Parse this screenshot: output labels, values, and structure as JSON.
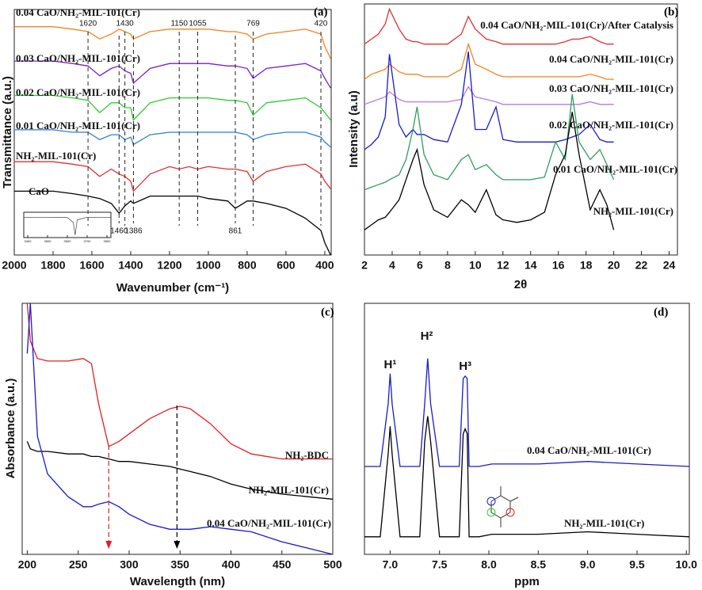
{
  "chart_data": [
    {
      "type": "line",
      "panel_label": "(a)",
      "xlabel": "Wavenumber (cm⁻¹)",
      "ylabel": "Transmittance (a.u.)",
      "xlim": [
        2000,
        367
      ],
      "ylim": [
        0,
        100
      ],
      "xticks": [
        2000,
        1800,
        1600,
        1400,
        1200,
        1000,
        800,
        600,
        400
      ],
      "x": [
        2000,
        1900,
        1800,
        1700,
        1620,
        1560,
        1500,
        1460,
        1430,
        1400,
        1386,
        1300,
        1200,
        1150,
        1100,
        1055,
        1000,
        900,
        861,
        800,
        769,
        700,
        600,
        500,
        420,
        400,
        370
      ],
      "series": [
        {
          "name": "0.04 CaO/NH₂-MIL-101(Cr)",
          "color": "#f5821f",
          "values": [
            93,
            93,
            93,
            92,
            91,
            88,
            90,
            92,
            91,
            90,
            88,
            91,
            92,
            92,
            92,
            92,
            92,
            91,
            91,
            90,
            88,
            90,
            91,
            92,
            90,
            85,
            80
          ]
        },
        {
          "name": "0.03 CaO/NH₂-MIL-101(Cr)",
          "color": "#7b1fc8",
          "values": [
            79,
            79,
            79,
            78,
            77,
            73,
            76,
            77,
            75,
            74,
            70,
            76,
            78,
            78,
            78,
            78,
            78,
            77,
            77,
            76,
            72,
            76,
            77,
            78,
            75,
            72,
            68
          ]
        },
        {
          "name": "0.02 CaO/NH₂-MIL-101(Cr)",
          "color": "#2ecc2e",
          "values": [
            65,
            65,
            65,
            64,
            63,
            58,
            62,
            62,
            60,
            60,
            55,
            62,
            64,
            64,
            64,
            64,
            64,
            63,
            63,
            62,
            57,
            62,
            63,
            64,
            60,
            58,
            55
          ]
        },
        {
          "name": "0.01 CaO/NH₂-MIL-101(Cr)",
          "color": "#2a7fd4",
          "values": [
            51,
            51,
            51,
            50,
            50,
            47,
            49,
            49,
            47,
            48,
            45,
            49,
            50,
            50,
            50,
            50,
            50,
            50,
            50,
            49,
            47,
            49,
            50,
            50,
            48,
            46,
            44
          ]
        },
        {
          "name": "NH₂-MIL-101(Cr)",
          "color": "#e03030",
          "values": [
            38,
            38,
            38,
            37,
            36,
            32,
            35,
            33,
            32,
            30,
            26,
            33,
            36,
            35,
            36,
            35,
            36,
            35,
            35,
            34,
            30,
            34,
            36,
            37,
            33,
            30,
            27
          ]
        },
        {
          "name": "CaO",
          "color": "#000000",
          "values": [
            26,
            26,
            26,
            25,
            24,
            23,
            21,
            17,
            20,
            22,
            21,
            24,
            24,
            24,
            24,
            24,
            23,
            22,
            19,
            22,
            22,
            21,
            19,
            15,
            10,
            5,
            0
          ]
        }
      ],
      "peaks_top": [
        1620,
        1430,
        1150,
        1055,
        769,
        420
      ],
      "peaks_bottom": [
        1460,
        1386,
        861
      ]
    },
    {
      "type": "line",
      "panel_label": "(b)",
      "xlabel": "2θ",
      "ylabel": "Intensity (a.u)",
      "xlim": [
        2,
        24.6
      ],
      "ylim": [
        0,
        100
      ],
      "xticks": [
        2,
        4,
        6,
        8,
        10,
        12,
        14,
        16,
        18,
        20,
        22,
        24
      ],
      "x": [
        2,
        2.5,
        3,
        3.5,
        3.8,
        4.5,
        5,
        5.5,
        5.8,
        6.3,
        7,
        8,
        9,
        9.5,
        10,
        10.8,
        11.5,
        12,
        13,
        14,
        15,
        15.8,
        16.5,
        17,
        17.5,
        18.3,
        19,
        19.5,
        20
      ],
      "series": [
        {
          "name": "0.04 CaO/NH₂-MIL-101(Cr)/After Catalysis",
          "color": "#e03030",
          "values": [
            84,
            86,
            88,
            92,
            98,
            90,
            86,
            85,
            85,
            84,
            84,
            84,
            88,
            95,
            90,
            86,
            85,
            84,
            84,
            84,
            84,
            84,
            85,
            86,
            86,
            87,
            85,
            84,
            84
          ]
        },
        {
          "name": "0.04 CaO/NH₂-MIL-101(Cr)",
          "color": "#f5821f",
          "values": [
            70,
            72,
            73,
            74,
            76,
            73,
            72,
            72,
            72,
            71,
            71,
            71,
            74,
            84,
            76,
            74,
            72,
            71,
            71,
            71,
            71,
            71,
            71,
            71,
            71,
            72,
            71,
            70,
            70
          ]
        },
        {
          "name": "0.03 CaO/NH₂-MIL-101(Cr)",
          "color": "#b57be0",
          "values": [
            60,
            61,
            62,
            63,
            65,
            62,
            61,
            61,
            61,
            61,
            61,
            61,
            62,
            67,
            63,
            62,
            61,
            60,
            60,
            60,
            60,
            60,
            60,
            60,
            60,
            61,
            60,
            60,
            60
          ]
        },
        {
          "name": "0.02 CaO/NH₂-MIL-101(Cr)",
          "color": "#1a1acc",
          "values": [
            42,
            44,
            47,
            55,
            80,
            52,
            47,
            50,
            48,
            48,
            46,
            45,
            60,
            81,
            50,
            50,
            59,
            46,
            45,
            45,
            45,
            45,
            46,
            47,
            48,
            52,
            46,
            45,
            45
          ]
        },
        {
          "name": "0.01 CaO/NH₂-MIL-101(Cr)",
          "color": "#2e9e5e",
          "values": [
            26,
            27,
            28,
            29,
            30,
            32,
            38,
            50,
            59,
            40,
            32,
            30,
            38,
            40,
            34,
            36,
            32,
            30,
            30,
            30,
            31,
            45,
            38,
            64,
            45,
            38,
            42,
            36,
            30
          ]
        },
        {
          "name": "NH₂-MIL-101(Cr)",
          "color": "#000000",
          "values": [
            10,
            12,
            14,
            15,
            17,
            22,
            30,
            38,
            42,
            28,
            18,
            15,
            22,
            20,
            17,
            26,
            16,
            14,
            13,
            14,
            17,
            32,
            40,
            57,
            40,
            18,
            26,
            20,
            10
          ]
        }
      ]
    },
    {
      "type": "line",
      "panel_label": "(c)",
      "xlabel": "Wavelength (nm)",
      "ylabel": "Absorbance (a.u.)",
      "xlim": [
        195,
        500
      ],
      "ylim": [
        0,
        100
      ],
      "xticks": [
        200,
        250,
        300,
        350,
        400,
        450,
        500
      ],
      "x": [
        200,
        203,
        210,
        220,
        240,
        255,
        263,
        270,
        280,
        290,
        300,
        320,
        340,
        350,
        360,
        380,
        400,
        420,
        450,
        500
      ],
      "series": [
        {
          "name": "NH₂-BDC",
          "color": "#e02020",
          "values": [
            100,
            85,
            78,
            77,
            77,
            78,
            76,
            60,
            43,
            45,
            48,
            54,
            58,
            59,
            58,
            52,
            44,
            40,
            38,
            38
          ]
        },
        {
          "name": "NH₂-MIL-101(Cr)",
          "color": "#000000",
          "values": [
            45,
            42,
            41,
            41,
            40,
            40,
            39,
            39,
            38,
            37,
            37,
            36,
            35,
            34,
            33,
            31,
            28,
            26,
            24,
            22
          ]
        },
        {
          "name": "0.04 CaO/NH₂-MIL-101(Cr)",
          "color": "#1a1acc",
          "values": [
            80,
            100,
            47,
            32,
            23,
            19,
            19,
            20,
            21,
            19,
            16,
            12,
            10,
            10,
            10,
            11,
            10,
            9,
            5,
            0
          ]
        }
      ],
      "arrows": [
        {
          "x": 280,
          "color": "#e02020"
        },
        {
          "x": 347,
          "color": "#000000"
        }
      ]
    },
    {
      "type": "line",
      "panel_label": "(d)",
      "xlabel": "ppm",
      "xlim": [
        6.74,
        10.03
      ],
      "ylim": [
        0,
        100
      ],
      "xticks": [
        {
          "value": 7,
          "label": "7.0"
        },
        7.5,
        {
          "value": 8,
          "label": "8.0"
        },
        8.5,
        {
          "value": 9,
          "label": "9.0"
        },
        9.5,
        {
          "value": 10,
          "label": "10.0"
        }
      ],
      "x": [
        6.74,
        6.9,
        6.98,
        7.0,
        7.02,
        7.1,
        7.3,
        7.35,
        7.38,
        7.41,
        7.5,
        7.7,
        7.74,
        7.76,
        7.78,
        7.8,
        7.9,
        8.03,
        8.5,
        9.0,
        9.5,
        10.03
      ],
      "series": [
        {
          "name": "0.04 CaO/NH₂-MIL-101(Cr)",
          "color": "#1a1acc",
          "values": [
            35,
            35,
            60,
            72,
            60,
            35,
            35,
            60,
            78,
            60,
            35,
            35,
            70,
            71,
            70,
            35,
            35,
            36,
            36,
            37,
            36,
            35
          ]
        },
        {
          "name": "NH₂-MIL-101(Cr)",
          "color": "#000000",
          "values": [
            7,
            7,
            40,
            51,
            40,
            7,
            7,
            45,
            55,
            45,
            7,
            7,
            48,
            50,
            48,
            7,
            7,
            8,
            8,
            9,
            8,
            7
          ]
        }
      ],
      "peak_labels": [
        {
          "text": "H¹",
          "x": 7.0
        },
        {
          "text": "H²",
          "x": 7.37
        },
        {
          "text": "H³",
          "x": 7.76
        }
      ]
    },
    {
      "type": "line",
      "xlim": [
        3380,
        3820
      ],
      "ylim": [
        0,
        100
      ],
      "xticks": [
        3400,
        3500,
        3600,
        3700,
        3800
      ],
      "x": [
        3380,
        3500,
        3600,
        3630,
        3639,
        3650,
        3700,
        3820
      ],
      "series": [
        {
          "color": "#555555",
          "values": [
            80,
            80,
            79,
            60,
            10,
            70,
            80,
            80
          ]
        }
      ]
    }
  ]
}
